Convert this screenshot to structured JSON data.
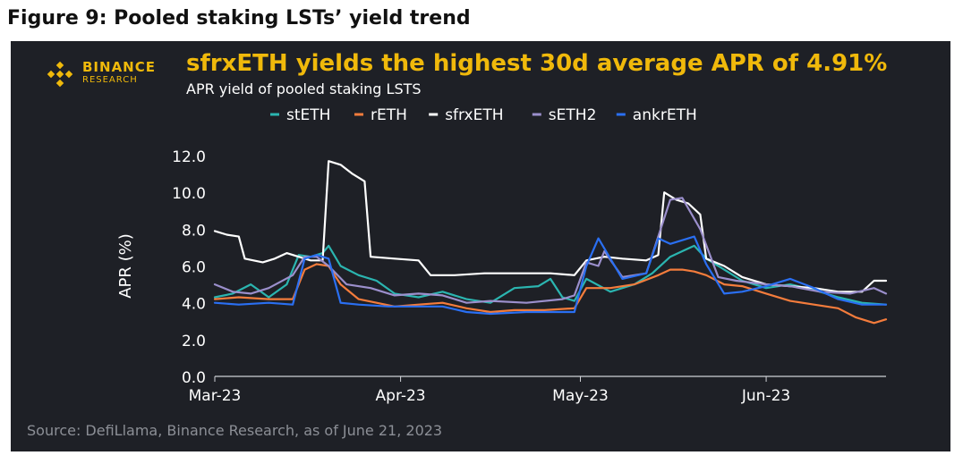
{
  "figure_title": "Figure 9: Pooled staking LSTs’ yield trend",
  "brand": {
    "name": "BINANCE",
    "sub": "RESEARCH",
    "color": "#f0b90b"
  },
  "source": "Source: DefiLlama, Binance Research, as of June 21, 2023",
  "chart_data": {
    "type": "line",
    "title": "sfrxETH yields the highest 30d average APR of 4.91%",
    "subtitle": "APR yield of pooled staking LSTS",
    "ylabel": "APR (%)",
    "xlabel": "",
    "ylim": [
      0,
      12
    ],
    "yticks": [
      "0.0",
      "2.0",
      "4.0",
      "6.0",
      "8.0",
      "10.0",
      "12.0"
    ],
    "x_start": "2023-03-01",
    "x_end": "2023-06-21",
    "xticks": [
      {
        "date": "2023-03-01",
        "label": "Mar-23"
      },
      {
        "date": "2023-04-01",
        "label": "Apr-23"
      },
      {
        "date": "2023-05-01",
        "label": "May-23"
      },
      {
        "date": "2023-06-01",
        "label": "Jun-23"
      }
    ],
    "legend_position": "top",
    "grid": false,
    "series": [
      {
        "name": "stETH",
        "color": "#2bb5b0",
        "points": [
          [
            "2023-03-01",
            4.3
          ],
          [
            "2023-03-04",
            4.5
          ],
          [
            "2023-03-07",
            5.0
          ],
          [
            "2023-03-10",
            4.3
          ],
          [
            "2023-03-13",
            5.0
          ],
          [
            "2023-03-15",
            6.6
          ],
          [
            "2023-03-17",
            6.5
          ],
          [
            "2023-03-19",
            6.7
          ],
          [
            "2023-03-20",
            7.1
          ],
          [
            "2023-03-22",
            6.0
          ],
          [
            "2023-03-25",
            5.5
          ],
          [
            "2023-03-28",
            5.2
          ],
          [
            "2023-03-31",
            4.5
          ],
          [
            "2023-04-04",
            4.3
          ],
          [
            "2023-04-08",
            4.6
          ],
          [
            "2023-04-12",
            4.2
          ],
          [
            "2023-04-16",
            4.0
          ],
          [
            "2023-04-20",
            4.8
          ],
          [
            "2023-04-24",
            4.9
          ],
          [
            "2023-04-26",
            5.3
          ],
          [
            "2023-04-28",
            4.3
          ],
          [
            "2023-04-30",
            4.1
          ],
          [
            "2023-05-02",
            5.3
          ],
          [
            "2023-05-06",
            4.6
          ],
          [
            "2023-05-10",
            5.0
          ],
          [
            "2023-05-13",
            5.6
          ],
          [
            "2023-05-16",
            6.5
          ],
          [
            "2023-05-18",
            6.8
          ],
          [
            "2023-05-20",
            7.1
          ],
          [
            "2023-05-22",
            6.4
          ],
          [
            "2023-05-25",
            5.8
          ],
          [
            "2023-05-28",
            5.2
          ],
          [
            "2023-06-01",
            4.8
          ],
          [
            "2023-06-05",
            5.0
          ],
          [
            "2023-06-09",
            4.7
          ],
          [
            "2023-06-13",
            4.3
          ],
          [
            "2023-06-17",
            4.0
          ],
          [
            "2023-06-21",
            3.9
          ]
        ]
      },
      {
        "name": "rETH",
        "color": "#f47c3c",
        "points": [
          [
            "2023-03-01",
            4.2
          ],
          [
            "2023-03-05",
            4.3
          ],
          [
            "2023-03-10",
            4.2
          ],
          [
            "2023-03-14",
            4.2
          ],
          [
            "2023-03-16",
            5.8
          ],
          [
            "2023-03-18",
            6.1
          ],
          [
            "2023-03-20",
            6.0
          ],
          [
            "2023-03-22",
            5.0
          ],
          [
            "2023-03-25",
            4.2
          ],
          [
            "2023-03-28",
            4.0
          ],
          [
            "2023-03-31",
            3.8
          ],
          [
            "2023-04-04",
            3.9
          ],
          [
            "2023-04-08",
            4.0
          ],
          [
            "2023-04-12",
            3.7
          ],
          [
            "2023-04-16",
            3.5
          ],
          [
            "2023-04-20",
            3.6
          ],
          [
            "2023-04-25",
            3.6
          ],
          [
            "2023-04-30",
            3.7
          ],
          [
            "2023-05-02",
            4.8
          ],
          [
            "2023-05-06",
            4.8
          ],
          [
            "2023-05-10",
            5.0
          ],
          [
            "2023-05-14",
            5.5
          ],
          [
            "2023-05-16",
            5.8
          ],
          [
            "2023-05-18",
            5.8
          ],
          [
            "2023-05-20",
            5.7
          ],
          [
            "2023-05-22",
            5.5
          ],
          [
            "2023-05-25",
            5.0
          ],
          [
            "2023-05-28",
            4.9
          ],
          [
            "2023-06-01",
            4.5
          ],
          [
            "2023-06-05",
            4.1
          ],
          [
            "2023-06-09",
            3.9
          ],
          [
            "2023-06-13",
            3.7
          ],
          [
            "2023-06-16",
            3.2
          ],
          [
            "2023-06-19",
            2.9
          ],
          [
            "2023-06-21",
            3.1
          ]
        ]
      },
      {
        "name": "sfrxETH",
        "color": "#ffffff",
        "points": [
          [
            "2023-03-01",
            7.9
          ],
          [
            "2023-03-03",
            7.7
          ],
          [
            "2023-03-05",
            7.6
          ],
          [
            "2023-03-06",
            6.4
          ],
          [
            "2023-03-09",
            6.2
          ],
          [
            "2023-03-11",
            6.4
          ],
          [
            "2023-03-13",
            6.7
          ],
          [
            "2023-03-17",
            6.3
          ],
          [
            "2023-03-19",
            6.3
          ],
          [
            "2023-03-20",
            11.7
          ],
          [
            "2023-03-22",
            11.5
          ],
          [
            "2023-03-24",
            11.0
          ],
          [
            "2023-03-26",
            10.6
          ],
          [
            "2023-03-27",
            6.5
          ],
          [
            "2023-03-31",
            6.4
          ],
          [
            "2023-04-04",
            6.3
          ],
          [
            "2023-04-06",
            5.5
          ],
          [
            "2023-04-10",
            5.5
          ],
          [
            "2023-04-15",
            5.6
          ],
          [
            "2023-04-20",
            5.6
          ],
          [
            "2023-04-26",
            5.6
          ],
          [
            "2023-04-30",
            5.5
          ],
          [
            "2023-05-02",
            6.3
          ],
          [
            "2023-05-05",
            6.5
          ],
          [
            "2023-05-08",
            6.4
          ],
          [
            "2023-05-12",
            6.3
          ],
          [
            "2023-05-14",
            6.6
          ],
          [
            "2023-05-15",
            10.0
          ],
          [
            "2023-05-17",
            9.6
          ],
          [
            "2023-05-19",
            9.4
          ],
          [
            "2023-05-21",
            8.8
          ],
          [
            "2023-05-22",
            6.4
          ],
          [
            "2023-05-25",
            6.0
          ],
          [
            "2023-05-28",
            5.4
          ],
          [
            "2023-06-01",
            5.0
          ],
          [
            "2023-06-05",
            4.9
          ],
          [
            "2023-06-09",
            4.8
          ],
          [
            "2023-06-13",
            4.6
          ],
          [
            "2023-06-17",
            4.6
          ],
          [
            "2023-06-19",
            5.2
          ],
          [
            "2023-06-21",
            5.2
          ]
        ]
      },
      {
        "name": "sETH2",
        "color": "#9b8fcc",
        "points": [
          [
            "2023-03-01",
            5.0
          ],
          [
            "2023-03-04",
            4.6
          ],
          [
            "2023-03-07",
            4.5
          ],
          [
            "2023-03-10",
            4.8
          ],
          [
            "2023-03-14",
            5.5
          ],
          [
            "2023-03-16",
            6.5
          ],
          [
            "2023-03-18",
            6.5
          ],
          [
            "2023-03-20",
            6.0
          ],
          [
            "2023-03-23",
            5.0
          ],
          [
            "2023-03-27",
            4.8
          ],
          [
            "2023-03-31",
            4.4
          ],
          [
            "2023-04-04",
            4.5
          ],
          [
            "2023-04-08",
            4.4
          ],
          [
            "2023-04-12",
            4.0
          ],
          [
            "2023-04-16",
            4.1
          ],
          [
            "2023-04-22",
            4.0
          ],
          [
            "2023-04-28",
            4.2
          ],
          [
            "2023-04-30",
            4.4
          ],
          [
            "2023-05-02",
            6.2
          ],
          [
            "2023-05-04",
            6.0
          ],
          [
            "2023-05-05",
            6.8
          ],
          [
            "2023-05-08",
            5.4
          ],
          [
            "2023-05-12",
            5.6
          ],
          [
            "2023-05-16",
            9.6
          ],
          [
            "2023-05-18",
            9.7
          ],
          [
            "2023-05-21",
            8.0
          ],
          [
            "2023-05-24",
            5.4
          ],
          [
            "2023-05-27",
            5.2
          ],
          [
            "2023-06-01",
            5.0
          ],
          [
            "2023-06-05",
            4.9
          ],
          [
            "2023-06-10",
            4.6
          ],
          [
            "2023-06-15",
            4.5
          ],
          [
            "2023-06-19",
            4.8
          ],
          [
            "2023-06-21",
            4.5
          ]
        ]
      },
      {
        "name": "ankrETH",
        "color": "#2a6ff2",
        "points": [
          [
            "2023-03-01",
            4.0
          ],
          [
            "2023-03-05",
            3.9
          ],
          [
            "2023-03-10",
            4.0
          ],
          [
            "2023-03-14",
            3.9
          ],
          [
            "2023-03-16",
            6.4
          ],
          [
            "2023-03-18",
            6.6
          ],
          [
            "2023-03-20",
            6.4
          ],
          [
            "2023-03-22",
            4.0
          ],
          [
            "2023-03-25",
            3.9
          ],
          [
            "2023-03-30",
            3.8
          ],
          [
            "2023-04-03",
            3.8
          ],
          [
            "2023-04-08",
            3.8
          ],
          [
            "2023-04-12",
            3.5
          ],
          [
            "2023-04-16",
            3.4
          ],
          [
            "2023-04-22",
            3.5
          ],
          [
            "2023-04-28",
            3.5
          ],
          [
            "2023-04-30",
            3.5
          ],
          [
            "2023-05-02",
            6.0
          ],
          [
            "2023-05-04",
            7.5
          ],
          [
            "2023-05-06",
            6.4
          ],
          [
            "2023-05-08",
            5.3
          ],
          [
            "2023-05-12",
            5.6
          ],
          [
            "2023-05-14",
            7.5
          ],
          [
            "2023-05-16",
            7.2
          ],
          [
            "2023-05-18",
            7.4
          ],
          [
            "2023-05-20",
            7.6
          ],
          [
            "2023-05-22",
            6.1
          ],
          [
            "2023-05-25",
            4.5
          ],
          [
            "2023-05-28",
            4.6
          ],
          [
            "2023-06-01",
            4.9
          ],
          [
            "2023-06-05",
            5.3
          ],
          [
            "2023-06-09",
            4.8
          ],
          [
            "2023-06-13",
            4.2
          ],
          [
            "2023-06-17",
            3.9
          ],
          [
            "2023-06-21",
            3.9
          ]
        ]
      }
    ]
  }
}
